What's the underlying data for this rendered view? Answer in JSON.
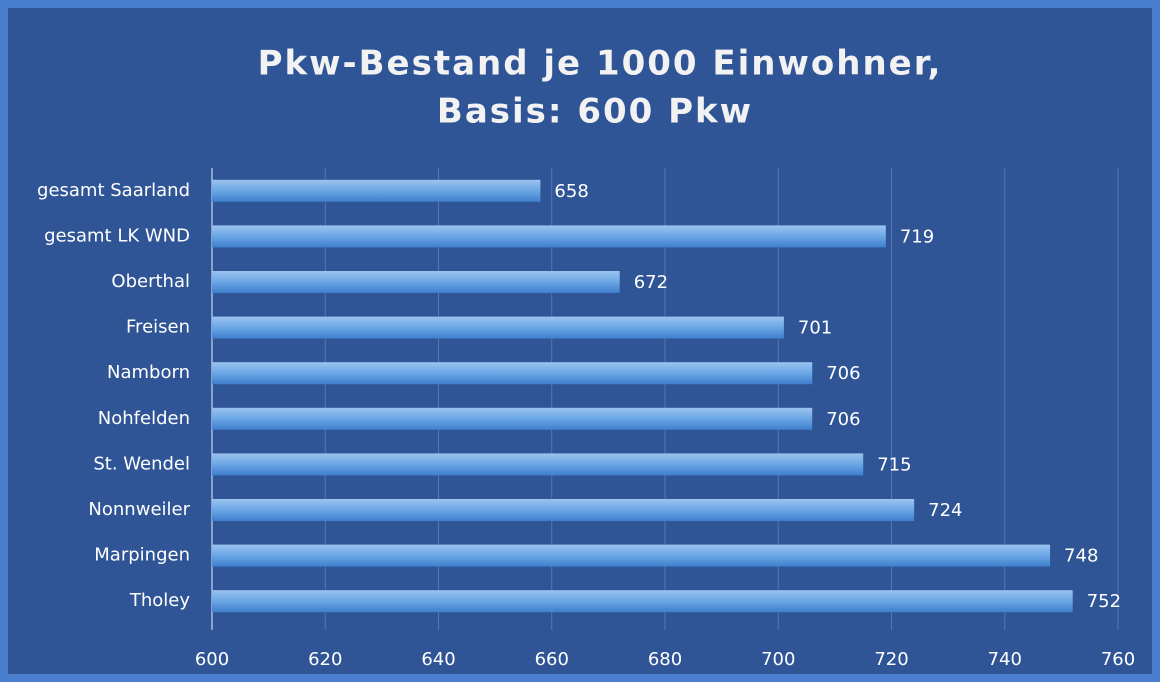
{
  "chart_data": {
    "type": "bar",
    "orientation": "horizontal",
    "title": [
      "Pkw-Bestand je 1000 Einwohner,",
      "Basis: 600 Pkw"
    ],
    "categories": [
      "gesamt Saarland",
      "gesamt LK WND",
      "Oberthal",
      "Freisen",
      "Namborn",
      "Nohfelden",
      "St. Wendel",
      "Nonnweiler",
      "Marpingen",
      "Tholey"
    ],
    "values": [
      658,
      719,
      672,
      701,
      706,
      706,
      715,
      724,
      748,
      752
    ],
    "color": "#5b9bd5",
    "xlim": [
      600,
      760
    ],
    "xticks": [
      600,
      620,
      640,
      660,
      680,
      700,
      720,
      740,
      760
    ],
    "grid": true
  }
}
